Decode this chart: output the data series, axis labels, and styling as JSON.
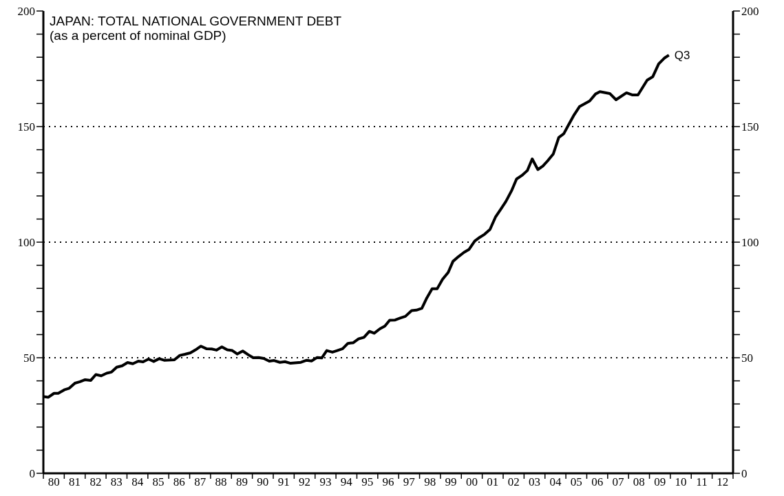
{
  "chart_data": {
    "type": "line",
    "title": "JAPAN: TOTAL NATIONAL GOVERNMENT DEBT",
    "subtitle": "(as a percent of nominal GDP)",
    "annotations": [
      {
        "text": "Q3",
        "x": 2009.43,
        "y": 180.9
      }
    ],
    "series": [
      {
        "color": "#000000",
        "x": [
          1979.5,
          1979.74,
          1980.01,
          1980.21,
          1980.5,
          1980.74,
          1981.01,
          1981.25,
          1981.5,
          1981.77,
          1982.01,
          1982.27,
          1982.53,
          1982.76,
          1983.01,
          1983.27,
          1983.53,
          1983.78,
          1984.04,
          1984.27,
          1984.53,
          1984.78,
          1985.04,
          1985.28,
          1985.77,
          1986.03,
          1986.27,
          1986.53,
          1986.78,
          1987.04,
          1987.3,
          1987.55,
          1987.78,
          1988.04,
          1988.3,
          1988.54,
          1988.78,
          1989.04,
          1989.3,
          1989.54,
          1989.8,
          1990.04,
          1990.31,
          1990.54,
          1990.82,
          1991.06,
          1991.33,
          1991.82,
          1992.1,
          1992.33,
          1992.6,
          1992.82,
          1993.06,
          1993.33,
          1993.56,
          1993.82,
          1994.07,
          1994.33,
          1994.59,
          1994.84,
          1995.1,
          1995.33,
          1995.6,
          1995.84,
          1996.07,
          1996.33,
          1996.59,
          1996.82,
          1997.12,
          1997.35,
          1997.61,
          1997.85,
          1998.1,
          1998.34,
          1998.6,
          1998.87,
          1999.1,
          1999.37,
          1999.63,
          1999.87,
          2000.14,
          2000.38,
          2000.61,
          2000.87,
          2001.13,
          2001.38,
          2001.63,
          2001.9,
          2002.14,
          2002.4,
          2002.66,
          2002.89,
          2003.16,
          2003.4,
          2003.63,
          2003.9,
          2004.16,
          2004.4,
          2004.62,
          2004.87,
          2005.15,
          2005.64,
          2005.92,
          2006.13,
          2006.6,
          2006.9,
          2007.4,
          2007.67,
          2007.95,
          2008.39,
          2008.66,
          2008.94,
          2009.21,
          2009.43
        ],
        "values": [
          33.2,
          32.9,
          34.6,
          34.6,
          36.1,
          36.8,
          39.0,
          39.6,
          40.5,
          40.2,
          42.7,
          42.2,
          43.3,
          43.8,
          45.9,
          46.5,
          47.9,
          47.4,
          48.5,
          48.2,
          49.4,
          48.4,
          49.6,
          48.9,
          49.1,
          51.0,
          51.5,
          52.1,
          53.4,
          55.0,
          53.9,
          53.8,
          53.3,
          54.7,
          53.4,
          53.1,
          51.6,
          52.9,
          51.3,
          50.0,
          50.1,
          49.7,
          48.5,
          48.8,
          48.0,
          48.3,
          47.6,
          48.0,
          48.9,
          48.6,
          50.1,
          49.9,
          53.1,
          52.4,
          53.1,
          53.9,
          56.2,
          56.5,
          58.2,
          58.8,
          61.4,
          60.6,
          62.5,
          63.7,
          66.2,
          66.3,
          67.2,
          67.9,
          70.4,
          70.6,
          71.4,
          75.9,
          79.8,
          79.8,
          83.9,
          86.9,
          91.7,
          93.8,
          95.6,
          96.9,
          100.5,
          102.1,
          103.4,
          105.5,
          110.8,
          114.2,
          117.6,
          122.2,
          127.3,
          128.9,
          131.0,
          136.0,
          131.4,
          132.9,
          135.2,
          138.2,
          145.3,
          146.9,
          150.6,
          154.7,
          158.6,
          161.1,
          164.1,
          165.1,
          164.3,
          161.6,
          164.6,
          163.7,
          163.7,
          170.1,
          171.6,
          177.1,
          179.6,
          180.9
        ]
      }
    ],
    "xlim": [
      1979.5,
      2012.5
    ],
    "xticks": [
      {
        "value": 1979.5,
        "label": null
      },
      {
        "value": 1980,
        "label": "80"
      },
      {
        "value": 1980.5,
        "label": null
      },
      {
        "value": 1981,
        "label": "81"
      },
      {
        "value": 1981.5,
        "label": null
      },
      {
        "value": 1982,
        "label": "82"
      },
      {
        "value": 1982.5,
        "label": null
      },
      {
        "value": 1983,
        "label": "83"
      },
      {
        "value": 1983.5,
        "label": null
      },
      {
        "value": 1984,
        "label": "84"
      },
      {
        "value": 1984.5,
        "label": null
      },
      {
        "value": 1985,
        "label": "85"
      },
      {
        "value": 1985.5,
        "label": null
      },
      {
        "value": 1986,
        "label": "86"
      },
      {
        "value": 1986.5,
        "label": null
      },
      {
        "value": 1987,
        "label": "87"
      },
      {
        "value": 1987.5,
        "label": null
      },
      {
        "value": 1988,
        "label": "88"
      },
      {
        "value": 1988.5,
        "label": null
      },
      {
        "value": 1989,
        "label": "89"
      },
      {
        "value": 1989.5,
        "label": null
      },
      {
        "value": 1990,
        "label": "90"
      },
      {
        "value": 1990.5,
        "label": null
      },
      {
        "value": 1991,
        "label": "91"
      },
      {
        "value": 1991.5,
        "label": null
      },
      {
        "value": 1992,
        "label": "92"
      },
      {
        "value": 1992.5,
        "label": null
      },
      {
        "value": 1993,
        "label": "93"
      },
      {
        "value": 1993.5,
        "label": null
      },
      {
        "value": 1994,
        "label": "94"
      },
      {
        "value": 1994.5,
        "label": null
      },
      {
        "value": 1995,
        "label": "95"
      },
      {
        "value": 1995.5,
        "label": null
      },
      {
        "value": 1996,
        "label": "96"
      },
      {
        "value": 1996.5,
        "label": null
      },
      {
        "value": 1997,
        "label": "97"
      },
      {
        "value": 1997.5,
        "label": null
      },
      {
        "value": 1998,
        "label": "98"
      },
      {
        "value": 1998.5,
        "label": null
      },
      {
        "value": 1999,
        "label": "99"
      },
      {
        "value": 1999.5,
        "label": null
      },
      {
        "value": 2000,
        "label": "00"
      },
      {
        "value": 2000.5,
        "label": null
      },
      {
        "value": 2001,
        "label": "01"
      },
      {
        "value": 2001.5,
        "label": null
      },
      {
        "value": 2002,
        "label": "02"
      },
      {
        "value": 2002.5,
        "label": null
      },
      {
        "value": 2003,
        "label": "03"
      },
      {
        "value": 2003.5,
        "label": null
      },
      {
        "value": 2004,
        "label": "04"
      },
      {
        "value": 2004.5,
        "label": null
      },
      {
        "value": 2005,
        "label": "05"
      },
      {
        "value": 2005.5,
        "label": null
      },
      {
        "value": 2006,
        "label": "06"
      },
      {
        "value": 2006.5,
        "label": null
      },
      {
        "value": 2007,
        "label": "07"
      },
      {
        "value": 2007.5,
        "label": null
      },
      {
        "value": 2008,
        "label": "08"
      },
      {
        "value": 2008.5,
        "label": null
      },
      {
        "value": 2009,
        "label": "09"
      },
      {
        "value": 2009.5,
        "label": null
      },
      {
        "value": 2010,
        "label": "10"
      },
      {
        "value": 2010.5,
        "label": null
      },
      {
        "value": 2011,
        "label": "11"
      },
      {
        "value": 2011.5,
        "label": null
      },
      {
        "value": 2012,
        "label": "12"
      },
      {
        "value": 2012.5,
        "label": null
      }
    ],
    "ylim": [
      0,
      200
    ],
    "yticks": [
      0,
      {
        "value": 10,
        "label": null
      },
      {
        "value": 20,
        "label": null
      },
      {
        "value": 30,
        "label": null
      },
      {
        "value": 40,
        "label": null
      },
      50,
      {
        "value": 60,
        "label": null
      },
      {
        "value": 70,
        "label": null
      },
      {
        "value": 80,
        "label": null
      },
      {
        "value": 90,
        "label": null
      },
      100,
      {
        "value": 110,
        "label": null
      },
      {
        "value": 120,
        "label": null
      },
      {
        "value": 130,
        "label": null
      },
      {
        "value": 140,
        "label": null
      },
      150,
      {
        "value": 160,
        "label": null
      },
      {
        "value": 170,
        "label": null
      },
      {
        "value": 180,
        "label": null
      },
      {
        "value": 190,
        "label": null
      },
      200
    ],
    "y2lim": [
      0,
      200
    ],
    "y2ticks": [
      0,
      {
        "value": 10,
        "label": null
      },
      {
        "value": 20,
        "label": null
      },
      {
        "value": 30,
        "label": null
      },
      {
        "value": 40,
        "label": null
      },
      50,
      {
        "value": 60,
        "label": null
      },
      {
        "value": 70,
        "label": null
      },
      {
        "value": 80,
        "label": null
      },
      {
        "value": 90,
        "label": null
      },
      100,
      {
        "value": 110,
        "label": null
      },
      {
        "value": 120,
        "label": null
      },
      {
        "value": 130,
        "label": null
      },
      {
        "value": 140,
        "label": null
      },
      150,
      {
        "value": 160,
        "label": null
      },
      {
        "value": 170,
        "label": null
      },
      {
        "value": 180,
        "label": null
      },
      {
        "value": 190,
        "label": null
      },
      200
    ],
    "ref_lines": [
      {
        "axis": "y",
        "value": 50,
        "color": "#000000",
        "line_style": "dotted"
      },
      {
        "axis": "y",
        "value": 100,
        "color": "#000000",
        "line_style": "dotted"
      },
      {
        "axis": "y",
        "value": 150,
        "color": "#000000",
        "line_style": "dotted"
      }
    ],
    "marker": "none",
    "line_style": "solid"
  }
}
